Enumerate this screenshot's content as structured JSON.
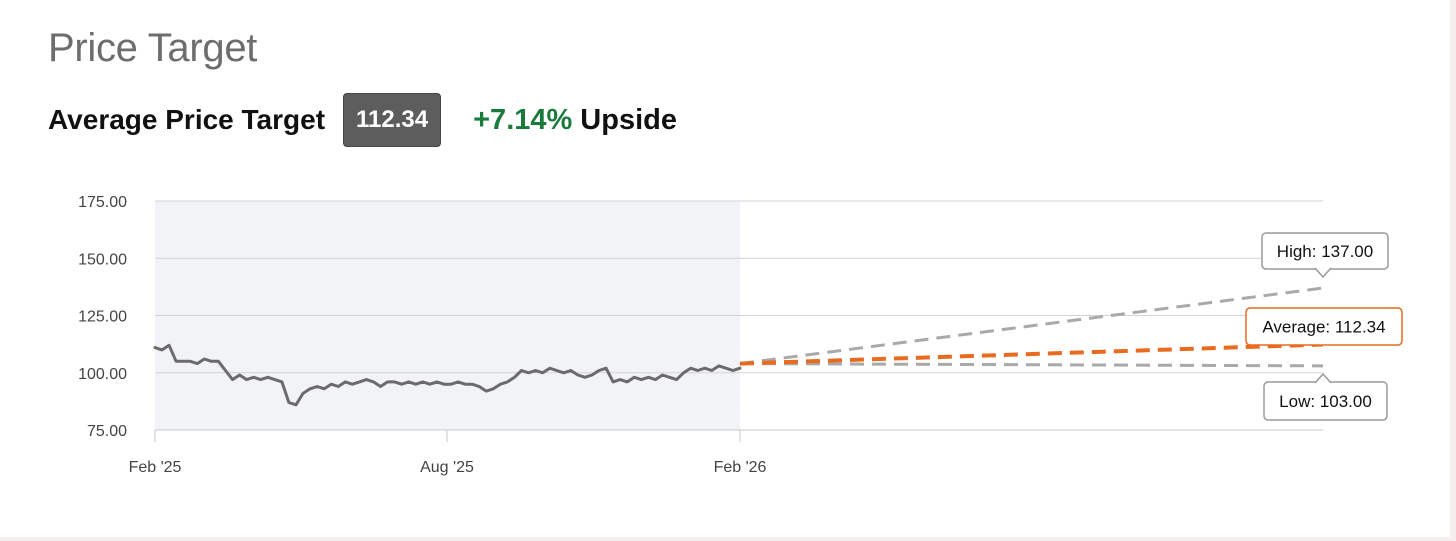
{
  "header": {
    "title": "Price Target",
    "target_label": "Average Price Target",
    "target_value": "112.34",
    "upside_value": "+7.14%",
    "upside_label": "Upside"
  },
  "colors": {
    "price_line": "#6b6b6b",
    "history_band": "#f2f3f7",
    "average": "#e86b1f",
    "high_low": "#a9a9a9",
    "upside": "#1a7a3c"
  },
  "chart_data": {
    "type": "line",
    "ylim": [
      75,
      175
    ],
    "y_ticks": [
      "175.00",
      "150.00",
      "125.00",
      "100.00",
      "75.00"
    ],
    "x_ticks": [
      "Feb '25",
      "Aug '25",
      "Feb '26"
    ],
    "grid": true,
    "price_series": {
      "x_range": [
        "Feb '25",
        "Feb '26"
      ],
      "values": [
        111,
        110,
        112,
        105,
        105,
        105,
        104,
        106,
        105,
        105,
        101,
        97,
        99,
        97,
        98,
        97,
        98,
        97,
        96,
        87,
        86,
        91,
        93,
        94,
        93,
        95,
        94,
        96,
        95,
        96,
        97,
        96,
        94,
        96,
        96,
        95,
        96,
        95,
        96,
        95,
        96,
        95,
        95,
        96,
        95,
        95,
        94,
        92,
        93,
        95,
        96,
        98,
        101,
        100,
        101,
        100,
        102,
        101,
        100,
        101,
        99,
        98,
        99,
        101,
        102,
        96,
        97,
        96,
        98,
        97,
        98,
        97,
        99,
        98,
        97,
        100,
        102,
        101,
        102,
        101,
        103,
        102,
        101,
        102
      ]
    },
    "forecast": [
      {
        "name": "High",
        "label": "High: 137.00",
        "start": 104,
        "end": 137
      },
      {
        "name": "Average",
        "label": "Average: 112.34",
        "start": 104,
        "end": 112.34
      },
      {
        "name": "Low",
        "label": "Low: 103.00",
        "start": 104,
        "end": 103
      }
    ]
  }
}
